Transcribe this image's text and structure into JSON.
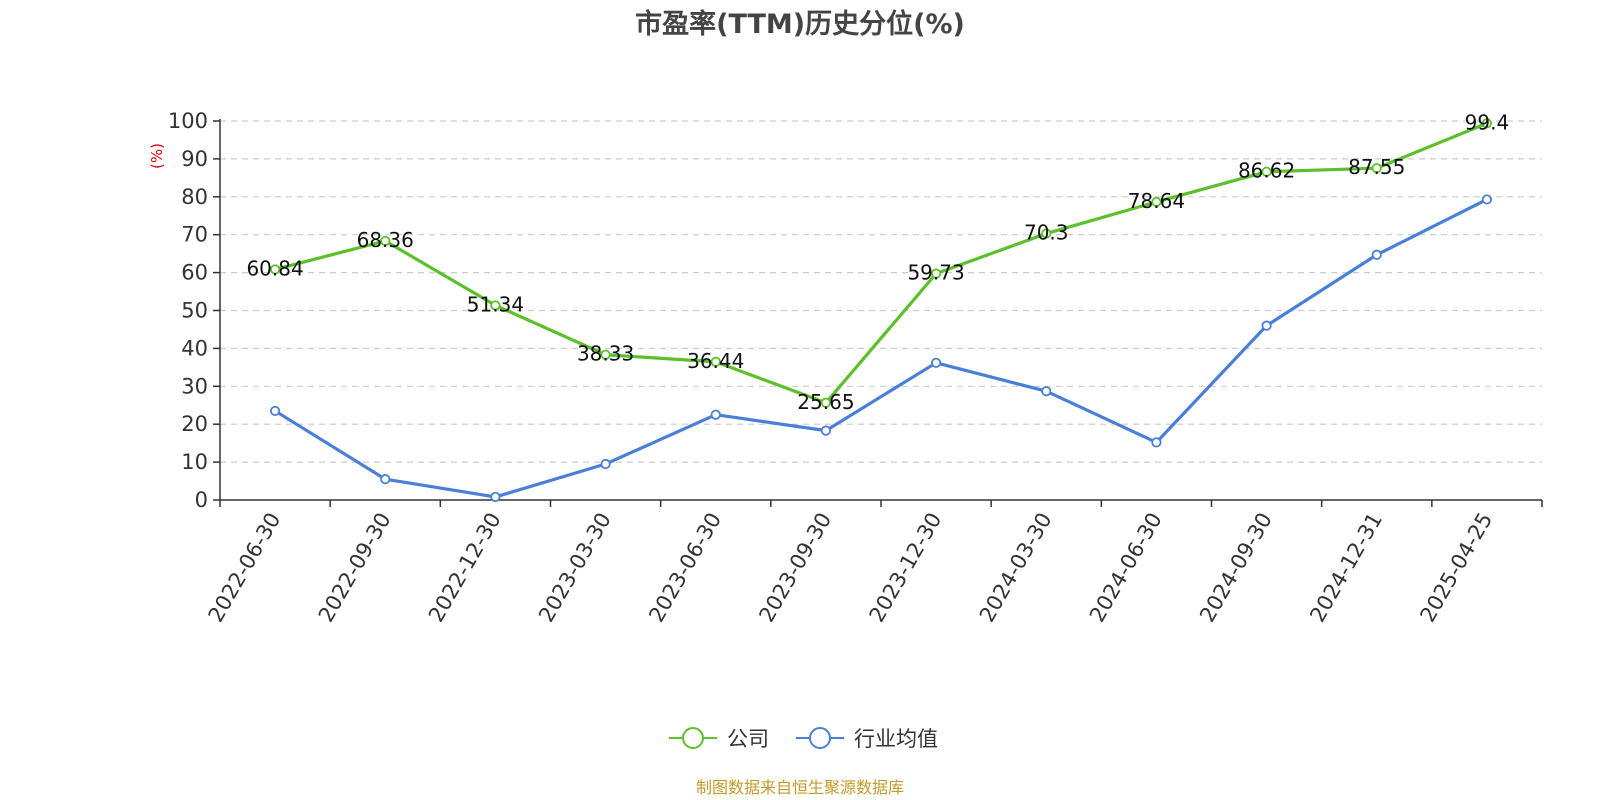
{
  "chart_data": {
    "type": "line",
    "title": "市盈率(TTM)历史分位(%)",
    "ylabel": "(%)",
    "xlabel": "",
    "ylim": [
      0,
      100
    ],
    "yticks": [
      0,
      10,
      20,
      30,
      40,
      50,
      60,
      70,
      80,
      90,
      100
    ],
    "categories": [
      "2022-06-30",
      "2022-09-30",
      "2022-12-30",
      "2023-03-30",
      "2023-06-30",
      "2023-09-30",
      "2023-12-30",
      "2024-03-30",
      "2024-06-30",
      "2024-09-30",
      "2024-12-31",
      "2025-04-25"
    ],
    "grid": true,
    "legend_position": "bottom-center",
    "series": [
      {
        "name": "公司",
        "color": "#5cc02a",
        "show_labels": true,
        "values": [
          60.84,
          68.36,
          51.34,
          38.33,
          36.44,
          25.65,
          59.73,
          70.3,
          78.64,
          86.62,
          87.55,
          99.4
        ]
      },
      {
        "name": "行业均值",
        "color": "#4a7fd9",
        "show_labels": false,
        "values": [
          23.5,
          5.5,
          0.8,
          9.5,
          22.5,
          18.3,
          36.2,
          28.7,
          15.2,
          46.0,
          64.7,
          79.3
        ]
      }
    ]
  },
  "footer": {
    "source": "制图数据来自恒生聚源数据库"
  }
}
